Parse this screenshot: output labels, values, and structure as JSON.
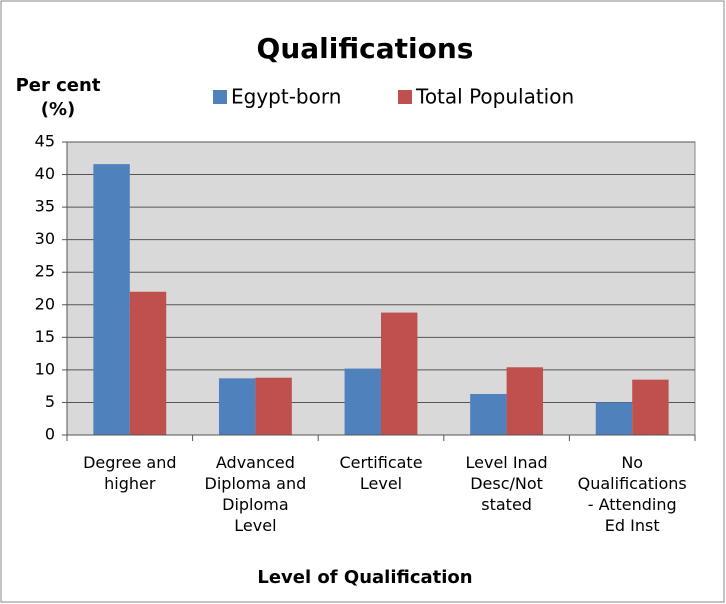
{
  "chart_data": {
    "type": "bar",
    "title": "Qualifications",
    "y_label": "Per cent (%)",
    "x_label": "Level of Qualification",
    "categories": [
      "Degree and higher",
      "Advanced Diploma and Diploma Level",
      "Certificate Level",
      "Level Inad Desc/Not stated",
      "No Qualifications - Attending Ed Inst"
    ],
    "series": [
      {
        "name": "Egypt-born",
        "color": "#4f81bd",
        "values": [
          41.6,
          8.7,
          10.2,
          6.3,
          5.0
        ]
      },
      {
        "name": "Total Population",
        "color": "#c0504d",
        "values": [
          22.0,
          8.8,
          18.8,
          10.4,
          8.5
        ]
      }
    ],
    "ylim": [
      0,
      45
    ],
    "yticks": [
      0,
      5,
      10,
      15,
      20,
      25,
      30,
      35,
      40,
      45
    ],
    "grid": true,
    "legend": "top"
  }
}
